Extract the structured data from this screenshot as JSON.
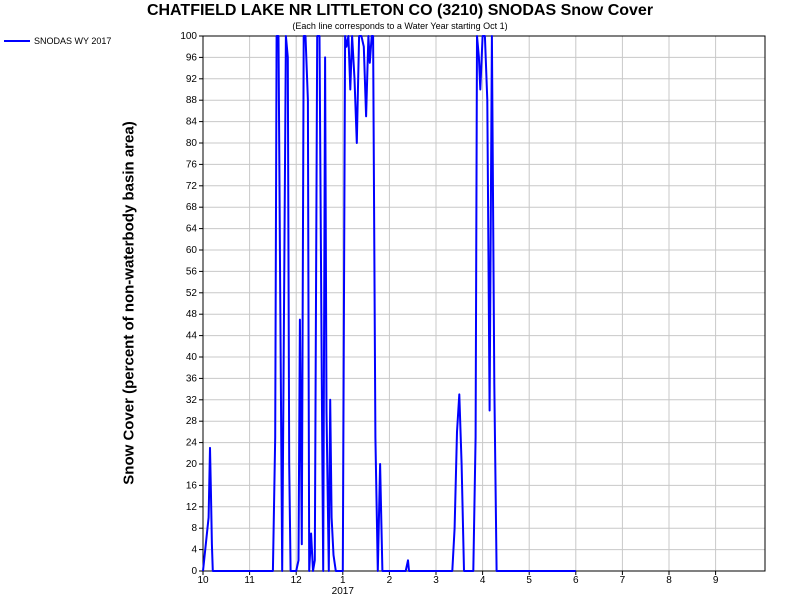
{
  "chart_data": {
    "type": "line",
    "title": "CHATFIELD LAKE NR LITTLETON CO (3210) SNODAS Snow Cover",
    "subtitle": "(Each line corresponds to a Water Year starting Oct 1)",
    "ylabel": "Snow Cover (percent of non-waterbody basin area)",
    "xlabel": "",
    "ylim": [
      0,
      100
    ],
    "yticks": [
      0,
      4,
      8,
      12,
      16,
      20,
      24,
      28,
      32,
      36,
      40,
      44,
      48,
      52,
      56,
      60,
      64,
      68,
      72,
      76,
      80,
      84,
      88,
      92,
      96,
      100
    ],
    "xlim": [
      10,
      10.96
    ],
    "x_tick_labels": [
      "10",
      "11",
      "12",
      "1",
      "2",
      "3",
      "4",
      "5",
      "6",
      "7",
      "8",
      "9"
    ],
    "x_year_label": "2017",
    "grid": true,
    "legend_position": "top-left",
    "color": "#0000ff",
    "series": [
      {
        "name": "SNODAS WY 2017",
        "x": [
          0.0,
          0.12,
          0.15,
          0.17,
          0.19,
          0.21,
          0.23,
          0.25,
          0.3,
          1.0,
          1.5,
          1.55,
          1.58,
          1.62,
          1.65,
          1.7,
          1.78,
          1.82,
          1.85,
          1.88,
          2.0,
          2.05,
          2.08,
          2.12,
          2.16,
          2.2,
          2.25,
          2.28,
          2.32,
          2.36,
          2.4,
          2.45,
          2.5,
          2.55,
          2.58,
          2.62,
          2.65,
          2.7,
          2.73,
          2.76,
          2.8,
          2.85,
          2.9,
          2.95,
          3.0,
          3.05,
          3.08,
          3.12,
          3.16,
          3.2,
          3.25,
          3.3,
          3.35,
          3.4,
          3.45,
          3.5,
          3.55,
          3.58,
          3.62,
          3.65,
          3.7,
          3.75,
          3.8,
          3.85,
          3.9,
          4.0,
          4.2,
          4.3,
          4.35,
          4.4,
          4.42,
          4.45,
          4.5,
          4.55,
          4.6,
          4.65,
          4.7,
          4.75,
          4.8,
          4.85,
          5.0,
          5.2,
          5.35,
          5.4,
          5.45,
          5.5,
          5.55,
          5.6,
          5.7,
          5.8,
          5.85,
          5.88,
          5.92,
          5.95,
          6.0,
          6.05,
          6.1,
          6.15,
          6.2,
          6.25,
          6.3,
          6.35,
          6.4,
          6.5,
          6.6,
          7.0,
          7.5,
          8.0
        ],
        "y": [
          0,
          10,
          23,
          15,
          5,
          0,
          0,
          0,
          0,
          0,
          0,
          25,
          100,
          100,
          60,
          0,
          100,
          96,
          20,
          0,
          0,
          2,
          47,
          5,
          100,
          100,
          88,
          0,
          7,
          0,
          2,
          100,
          100,
          35,
          0,
          96,
          30,
          0,
          32,
          10,
          3,
          0,
          0,
          0,
          0,
          100,
          98,
          100,
          90,
          100,
          92,
          80,
          100,
          100,
          98,
          85,
          100,
          95,
          100,
          100,
          25,
          0,
          20,
          0,
          0,
          0,
          0,
          0,
          0,
          2,
          0,
          0,
          0,
          0,
          0,
          0,
          0,
          0,
          0,
          0,
          0,
          0,
          0,
          8,
          26,
          33,
          20,
          0,
          0,
          0,
          25,
          100,
          96,
          90,
          100,
          100,
          88,
          30,
          100,
          35,
          0,
          0,
          0,
          0,
          0,
          0,
          0,
          0
        ]
      }
    ]
  }
}
